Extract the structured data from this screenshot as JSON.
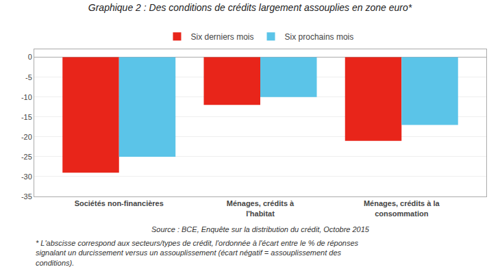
{
  "chart_data": {
    "type": "bar",
    "title": "Graphique 2 : Des conditions de crédits largement assouplies en zone euro*",
    "categories": [
      "Sociétés non-financières",
      "Ménages, crédits à\nl'habitat",
      "Ménages, crédits à la\nconsommation"
    ],
    "series": [
      {
        "name": "Six derniers mois",
        "color": "#e8251a",
        "values": [
          -29,
          -12,
          -21
        ]
      },
      {
        "name": "Six prochains mois",
        "color": "#5bc4e8",
        "values": [
          -25,
          -10,
          -17
        ]
      }
    ],
    "ylim": [
      -35,
      2
    ],
    "yticks": [
      0,
      -5,
      -10,
      -15,
      -20,
      -25,
      -30,
      -35
    ],
    "grid": true,
    "legend": "top",
    "annotations": [
      "Source : BCE, Enquête sur la distribution du crédit, Octobre 2015",
      "* L'abscisse correspond aux secteurs/types de crédit, l'ordonnée à l'écart entre le % de réponses\nsignalant un durcissement versus un assouplissement (écart négatif = assouplissement des\nconditions)."
    ]
  }
}
